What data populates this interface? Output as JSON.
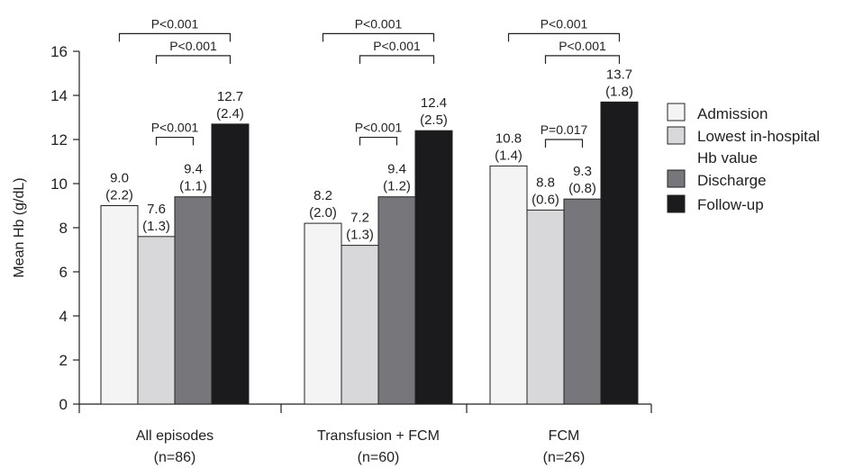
{
  "chart_data": {
    "type": "bar",
    "title": "",
    "xlabel": "",
    "ylabel": "Mean Hb (g/dL)",
    "ylim": [
      0,
      16
    ],
    "yticks": [
      0,
      2,
      4,
      6,
      8,
      10,
      12,
      14,
      16
    ],
    "groups": [
      {
        "line1": "All episodes",
        "line2": "(n=86)"
      },
      {
        "line1": "Transfusion + FCM",
        "line2": "(n=60)"
      },
      {
        "line1": "FCM",
        "line2": "(n=26)"
      }
    ],
    "series": [
      {
        "name": "Admission",
        "color": "#f4f4f4",
        "values": [
          9.0,
          8.2,
          10.8
        ],
        "value_labels": [
          "9.0",
          "8.2",
          "10.8"
        ],
        "sd_labels": [
          "(2.2)",
          "(2.0)",
          "(1.4)"
        ]
      },
      {
        "name": "Lowest in-hospital Hb value",
        "legend_lines": [
          "Lowest in-hospital",
          "Hb value"
        ],
        "color": "#d8d8da",
        "values": [
          7.6,
          7.2,
          8.8
        ],
        "value_labels": [
          "7.6",
          "7.2",
          "8.8"
        ],
        "sd_labels": [
          "(1.3)",
          "(1.3)",
          "(0.6)"
        ]
      },
      {
        "name": "Discharge",
        "color": "#77777b",
        "values": [
          9.4,
          9.4,
          9.3
        ],
        "value_labels": [
          "9.4",
          "9.4",
          "9.3"
        ],
        "sd_labels": [
          "(1.1)",
          "(1.2)",
          "(0.8)"
        ]
      },
      {
        "name": "Follow-up",
        "color": "#1b1b1d",
        "values": [
          12.7,
          12.4,
          13.7
        ],
        "value_labels": [
          "12.7",
          "12.4",
          "13.7"
        ],
        "sd_labels": [
          "(2.4)",
          "(2.5)",
          "(1.8)"
        ]
      }
    ],
    "significance": [
      {
        "group": 0,
        "from": 0,
        "to": 3,
        "label": "P<0.001",
        "level": 16.8
      },
      {
        "group": 0,
        "from": 1,
        "to": 3,
        "label": "P<0.001",
        "level": 15.8
      },
      {
        "group": 0,
        "from": 1,
        "to": 2,
        "label": "P<0.001",
        "level": 12.1
      },
      {
        "group": 1,
        "from": 0,
        "to": 3,
        "label": "P<0.001",
        "level": 16.8
      },
      {
        "group": 1,
        "from": 1,
        "to": 3,
        "label": "P<0.001",
        "level": 15.8
      },
      {
        "group": 1,
        "from": 1,
        "to": 2,
        "label": "P<0.001",
        "level": 12.1
      },
      {
        "group": 2,
        "from": 0,
        "to": 3,
        "label": "P<0.001",
        "level": 16.8
      },
      {
        "group": 2,
        "from": 1,
        "to": 3,
        "label": "P<0.001",
        "level": 15.8
      },
      {
        "group": 2,
        "from": 1,
        "to": 2,
        "label": "P=0.017",
        "level": 12.0
      }
    ],
    "legend_position": "right",
    "grid": false
  }
}
